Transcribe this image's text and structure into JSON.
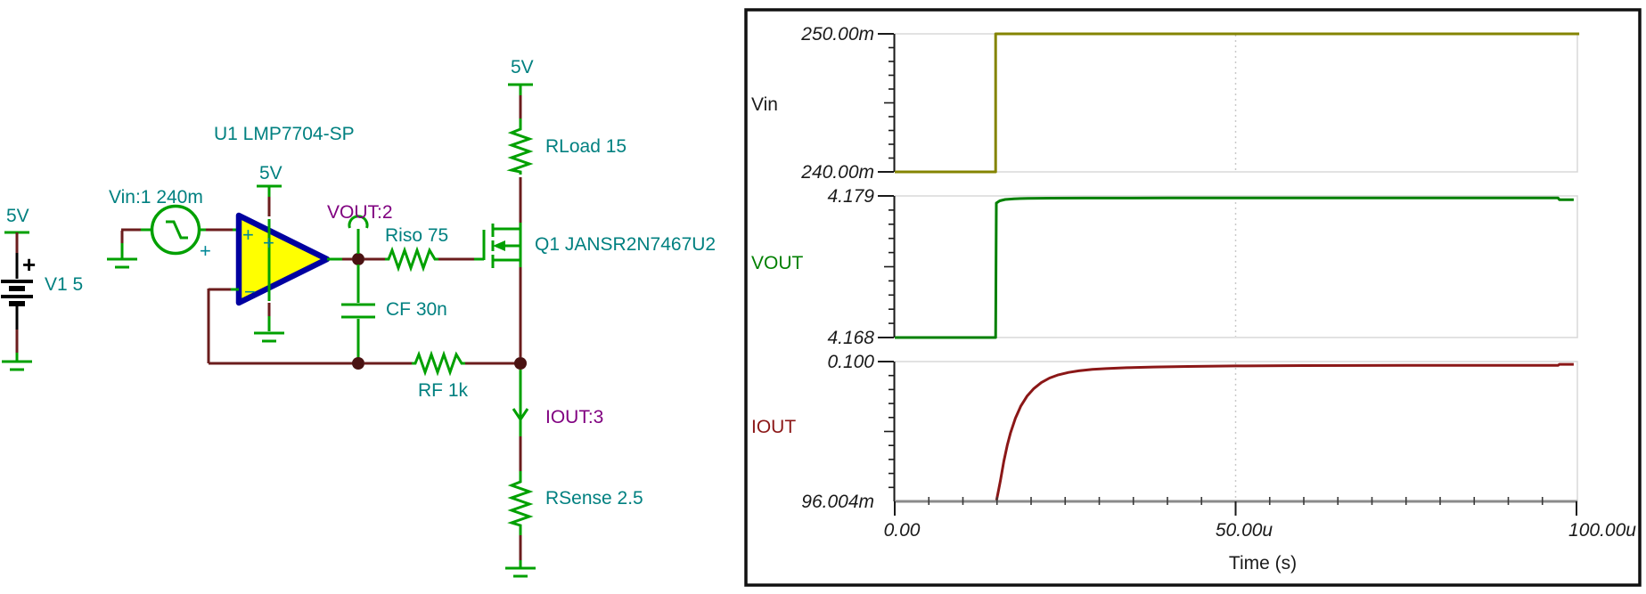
{
  "schematic": {
    "supply_label": "5V",
    "plus": "+",
    "minus": "−",
    "battery_label": "V1 5",
    "source_label": "Vin:1 240m",
    "opamp_label": "U1 LMP7704-SP",
    "vout_probe_label": "VOUT:2",
    "riso_label": "Riso 75",
    "cf_label": "CF 30n",
    "rf_label": "RF 1k",
    "mosfet_label": "Q1 JANSR2N7467U2",
    "rload_label": "RLoad 15",
    "iout_probe_label": "IOUT:3",
    "rsense_label": "RSense 2.5",
    "colors": {
      "component_green": "#00a000",
      "wire_maroon": "#6b1d1d",
      "value_label_teal": "#008080",
      "probe_label_purple": "#800080",
      "opamp_fill": "#ffff00",
      "opamp_border": "#0000a0"
    }
  },
  "chart_data": {
    "type": "line",
    "xlabel": "Time (s)",
    "x_ticks": [
      "0.00",
      "50.00u",
      "100.00u"
    ],
    "x_range_us": [
      0,
      100
    ],
    "x_gridline_us": 50,
    "legend_position": "left",
    "grid": "boxed subplots, dashed vertical gridline at 50u",
    "plots": [
      {
        "name": "Vin",
        "color": "#848400",
        "y_top_label": "250.00m",
        "y_bottom_label": "240.00m",
        "ylim": [
          0.24,
          0.25
        ],
        "points_us_v": [
          [
            0,
            0.24
          ],
          [
            14.8,
            0.24
          ],
          [
            14.8,
            0.25
          ],
          [
            100.4,
            0.25
          ]
        ]
      },
      {
        "name": "VOUT",
        "color": "#008000",
        "y_top_label": "4.179",
        "y_bottom_label": "4.168",
        "ylim": [
          4.168,
          4.179
        ],
        "points_us_v": [
          [
            0,
            4.168
          ],
          [
            14.8,
            4.168
          ],
          [
            14.9,
            4.17845
          ],
          [
            15.4,
            4.17862
          ],
          [
            16.2,
            4.17872
          ],
          [
            17.5,
            4.17878
          ],
          [
            19.5,
            4.17881
          ],
          [
            23,
            4.178825
          ],
          [
            28,
            4.178835
          ],
          [
            40,
            4.17884
          ],
          [
            60,
            4.17884
          ],
          [
            97.3,
            4.17884
          ],
          [
            97.5,
            4.1787
          ],
          [
            99.6,
            4.1787
          ]
        ]
      },
      {
        "name": "IOUT",
        "color": "#8b1717",
        "y_top_label": "0.100",
        "y_bottom_label": "96.004m",
        "ylim": [
          0.096004,
          0.1
        ],
        "points_us_v": [
          [
            0,
            0.096004
          ],
          [
            14.9,
            0.096004
          ],
          [
            15.2,
            0.0963
          ],
          [
            15.5,
            0.0966
          ],
          [
            16,
            0.09715
          ],
          [
            16.5,
            0.0976
          ],
          [
            17,
            0.09797
          ],
          [
            17.7,
            0.09838
          ],
          [
            18.5,
            0.09873
          ],
          [
            19.4,
            0.09901
          ],
          [
            20.4,
            0.09923
          ],
          [
            21.5,
            0.0994
          ],
          [
            22.7,
            0.09953
          ],
          [
            24,
            0.09962
          ],
          [
            25.5,
            0.09969
          ],
          [
            27,
            0.099735
          ],
          [
            29,
            0.099775
          ],
          [
            31,
            0.0998
          ],
          [
            34,
            0.099825
          ],
          [
            38,
            0.099845
          ],
          [
            43,
            0.09986
          ],
          [
            50,
            0.099875
          ],
          [
            60,
            0.099885
          ],
          [
            75,
            0.09989
          ],
          [
            97.3,
            0.09989
          ],
          [
            97.5,
            0.09992
          ],
          [
            99.6,
            0.09992
          ]
        ]
      }
    ]
  }
}
